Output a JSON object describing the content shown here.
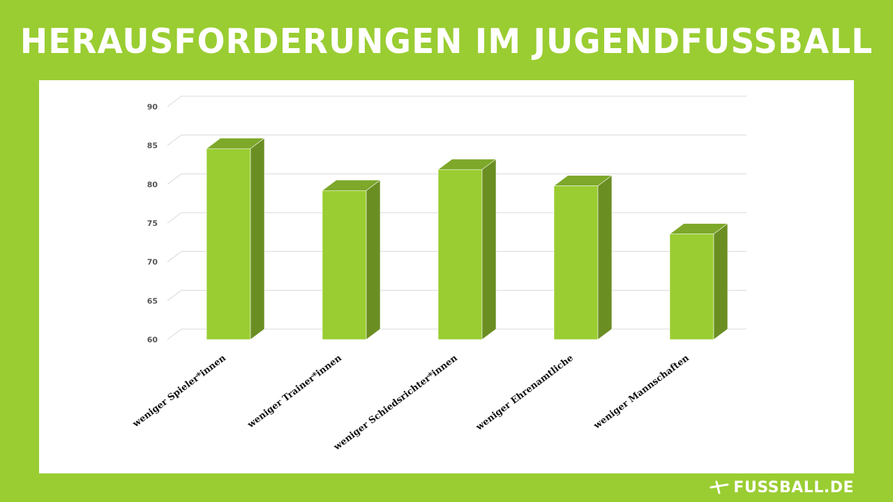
{
  "header": {
    "title": "HERAUSFORDERUNGEN IM JUGENDFUSSBALL"
  },
  "brand": {
    "name": "FUSSBALL.DE"
  },
  "colors": {
    "background": "#9acd32",
    "bar_front": "#9acd32",
    "bar_side": "#6b8e23",
    "bar_top": "#7da82a"
  },
  "chart_data": {
    "type": "bar",
    "categories": [
      "weniger Spieler*innen",
      "weniger Trainer*innen",
      "weniger Schiedsrichter*innen",
      "weniger Ehrenamtliche",
      "weniger Mannschaften"
    ],
    "values": [
      84.6,
      79.2,
      81.9,
      79.8,
      73.6
    ],
    "ylim": [
      60,
      90
    ],
    "yticks": [
      60,
      65,
      70,
      75,
      80,
      85,
      90
    ],
    "grid": true,
    "style": "3d"
  }
}
